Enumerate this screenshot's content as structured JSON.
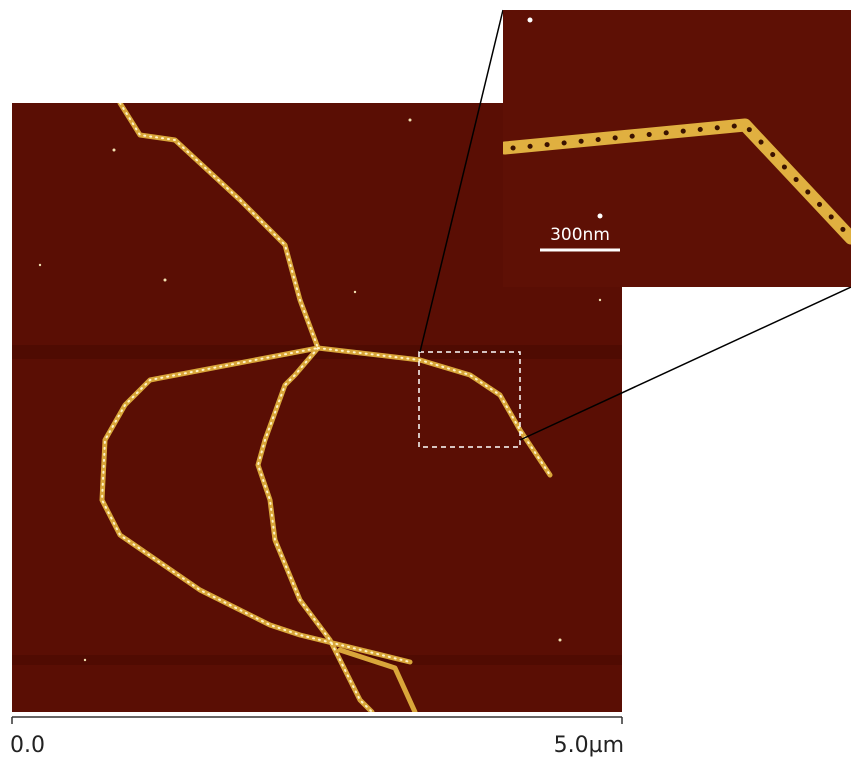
{
  "inset": {
    "scale_bar_label": "300nm"
  },
  "axis": {
    "start_label": "0.0",
    "end_label": "5.0µm"
  }
}
